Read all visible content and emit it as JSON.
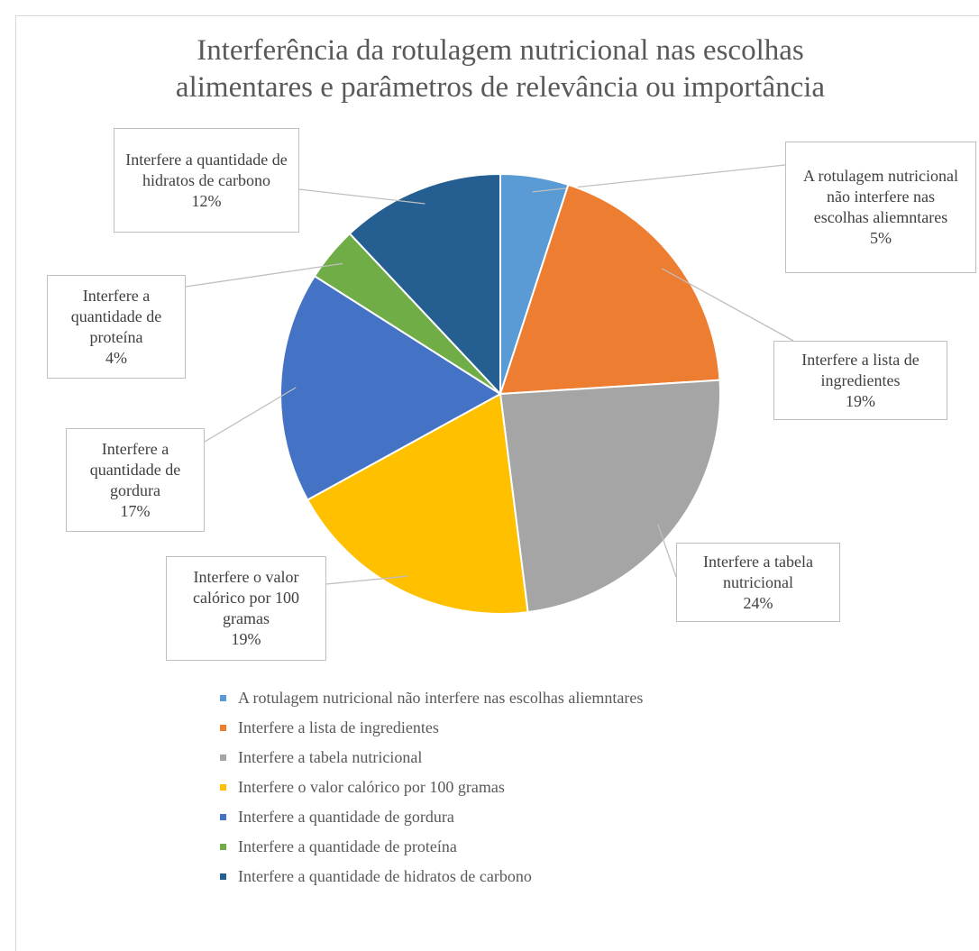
{
  "chart_data": {
    "type": "pie",
    "title": "Interferência da rotulagem nutricional nas escolhas alimentares e parâmetros de relevância ou importância",
    "categories": [
      "A rotulagem nutricional não interfere nas escolhas aliemntares",
      "Interfere a lista de ingredientes",
      "Interfere a tabela nutricional",
      "Interfere o valor calórico por 100 gramas",
      "Interfere a quantidade de gordura",
      "Interfere a quantidade de proteína",
      "Interfere a quantidade de hidratos de carbono"
    ],
    "values": [
      5,
      19,
      24,
      19,
      17,
      4,
      12
    ],
    "value_labels": [
      "5%",
      "19%",
      "24%",
      "19%",
      "17%",
      "4%",
      "12%"
    ],
    "colors": [
      "#5b9bd5",
      "#ed7d31",
      "#a5a5a5",
      "#ffc000",
      "#4472c4",
      "#70ad47",
      "#255e91"
    ],
    "legend": "bottom"
  }
}
